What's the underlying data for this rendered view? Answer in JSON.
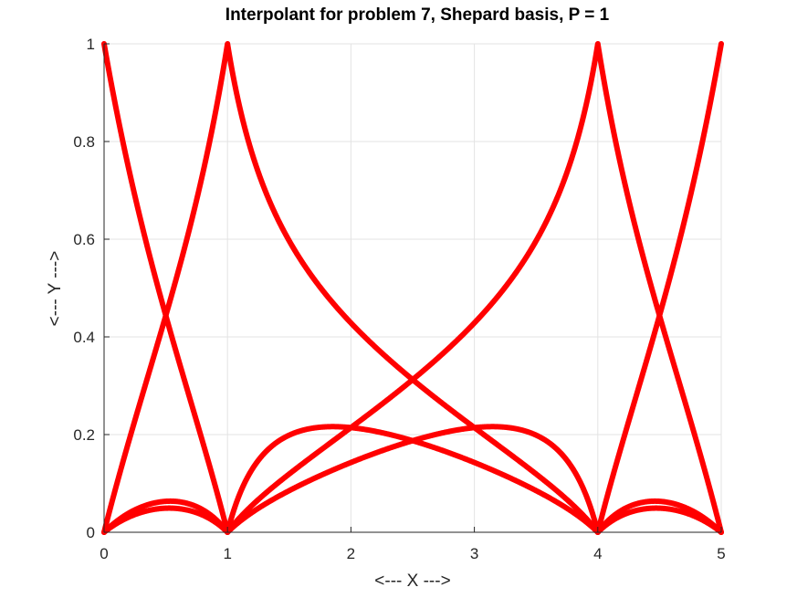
{
  "chart_data": {
    "type": "line",
    "title": "Interpolant for problem 7, Shepard basis, P = 1",
    "xlabel": "<--- X --->",
    "ylabel": "<--- Y --->",
    "xlim": [
      0,
      5
    ],
    "ylim": [
      0,
      1
    ],
    "xticks": [
      "0",
      "1",
      "2",
      "3",
      "4",
      "5"
    ],
    "yticks": [
      "0",
      "0.2",
      "0.4",
      "0.6",
      "0.8",
      "1"
    ],
    "grid": true,
    "line_color": "#ff0000",
    "nodes_x": [
      0,
      1,
      4,
      5
    ],
    "shepard_power": 1
  }
}
